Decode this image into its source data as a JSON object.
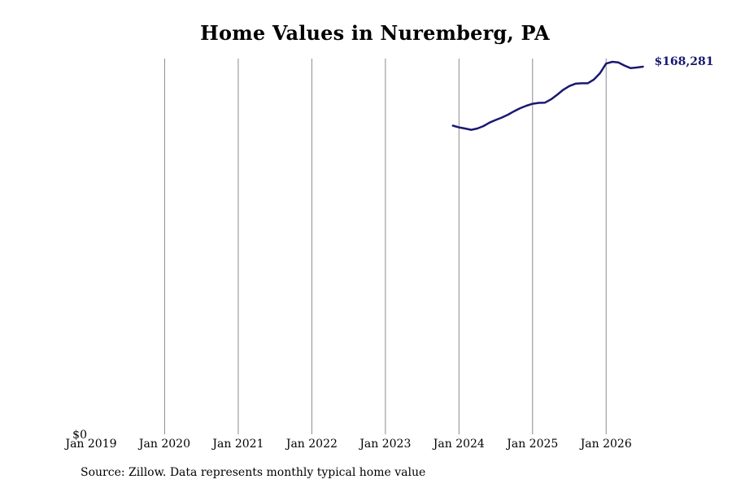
{
  "chart_data": {
    "type": "line",
    "title": "Home Values in Nuremberg, PA",
    "xlabel": "",
    "ylabel": "",
    "x_tick_labels": [
      "Jan 2019",
      "Jan 2020",
      "Jan 2021",
      "Jan 2022",
      "Jan 2023",
      "Jan 2024",
      "Jan 2025",
      "Jan 2026"
    ],
    "y_tick_labels": [
      "$0"
    ],
    "xlim": [
      "2019-01",
      "2026-08"
    ],
    "ylim": [
      0,
      172000
    ],
    "grid": "vertical",
    "legend": "none",
    "line_color": "#191970",
    "series": [
      {
        "x": [
          "2023-12",
          "2024-01",
          "2024-02",
          "2024-03",
          "2024-04",
          "2024-05",
          "2024-06",
          "2024-07",
          "2024-08",
          "2024-09",
          "2024-10",
          "2024-11",
          "2024-12",
          "2025-01",
          "2025-02",
          "2025-03",
          "2025-04",
          "2025-05",
          "2025-06",
          "2025-07",
          "2025-08",
          "2025-09",
          "2025-10",
          "2025-11",
          "2025-12",
          "2026-01",
          "2026-02",
          "2026-03",
          "2026-04",
          "2026-05",
          "2026-06",
          "2026-07"
        ],
        "values": [
          141300,
          140500,
          140000,
          139400,
          140000,
          141100,
          142700,
          143900,
          145000,
          146300,
          147900,
          149300,
          150400,
          151300,
          151700,
          151800,
          153300,
          155400,
          157700,
          159400,
          160500,
          160700,
          160700,
          162400,
          165300,
          169700,
          170500,
          170200,
          168800,
          167600,
          167900,
          168281
        ],
        "end_label": "$168,281"
      }
    ]
  },
  "source_note": "Source: Zillow. Data represents monthly typical home value"
}
